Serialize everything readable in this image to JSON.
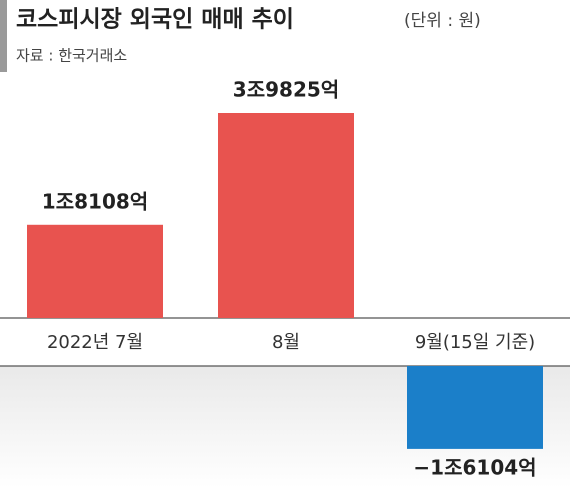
{
  "chart_data": {
    "type": "bar",
    "title": "코스피시장 외국인 매매 추이",
    "unit": "(단위 : 원)",
    "source": "자료 : 한국거래소",
    "categories": [
      "2022년 7월",
      "8월",
      "9월(15일 기준)"
    ],
    "values": [
      1810800000000,
      3982500000000,
      -1610400000000
    ],
    "value_labels": [
      "1조8108억",
      "3조9825억",
      "−1조6104억"
    ],
    "colors": [
      "#e8534f",
      "#e8534f",
      "#1b7fc9"
    ]
  }
}
